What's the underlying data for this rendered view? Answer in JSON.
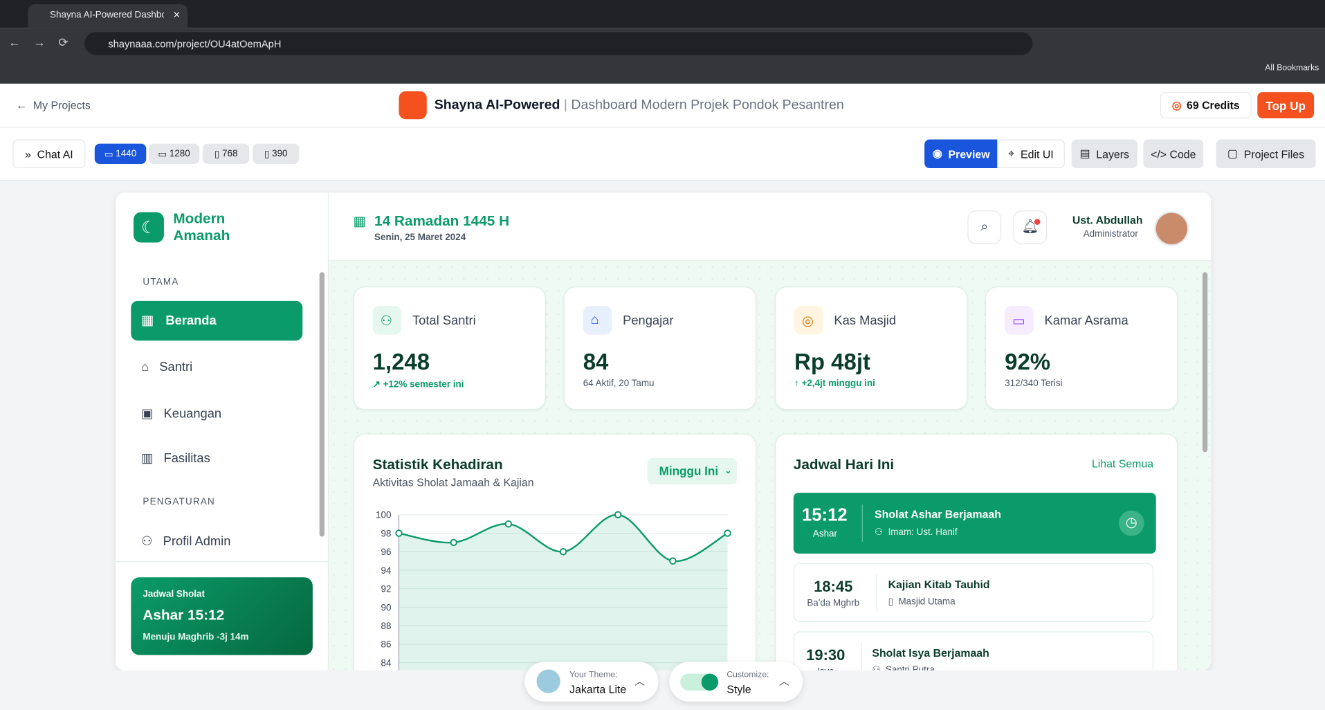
{
  "browser": {
    "tab_title": "Shayna AI-Powered Dashboard",
    "url": "shaynaaa.com/project/OU4atOemApH",
    "bookmarks": "All Bookmarks"
  },
  "app_header": {
    "back": "My Projects",
    "brand": "Shayna AI-Powered",
    "separator": "|",
    "subtitle": "Dashboard Modern Projek Pondok Pesantren",
    "credits": "69 Credits",
    "top_up": "Top Up"
  },
  "toolbar": {
    "chat": "Chat AI",
    "sizes": [
      "1440",
      "1280",
      "768",
      "390"
    ],
    "preview": "Preview",
    "edit": "Edit UI",
    "layers": "Layers",
    "code": "Code",
    "files": "Project Files"
  },
  "dashboard": {
    "logo": [
      "Modern",
      "Amanah"
    ],
    "date_title": "14 Ramadan 1445 H",
    "date_sub": "Senin, 25 Maret 2024",
    "user": {
      "name": "Ust. Abdullah",
      "role": "Administrator"
    },
    "sidebar": {
      "sections": [
        {
          "title": "UTAMA",
          "items": [
            "Beranda",
            "Santri",
            "Keuangan",
            "Fasilitas"
          ]
        },
        {
          "title": "PENGATURAN",
          "items": [
            "Profil Admin"
          ]
        }
      ],
      "prayer_card": {
        "label": "Jadwal Sholat",
        "time": "Ashar 15:12",
        "note": "Menuju Maghrib -3j 14m"
      }
    },
    "stats": [
      {
        "label": "Total Santri",
        "value": "1,248",
        "note": "+12% semester ini"
      },
      {
        "label": "Pengajar",
        "value": "84",
        "note": "64 Aktif, 20 Tamu"
      },
      {
        "label": "Kas Masjid",
        "value": "Rp 48jt",
        "note": "+2,4jt minggu ini"
      },
      {
        "label": "Kamar Asrama",
        "value": "92%",
        "note": "312/340 Terisi"
      }
    ],
    "schedule": {
      "title": "Jadwal Hari Ini",
      "link": "Lihat Semua",
      "items": [
        {
          "time": "15:12",
          "label": "Ashar",
          "title": "Sholat Ashar Berjamaah",
          "detail": "Imam: Ust. Hanif"
        },
        {
          "time": "18:45",
          "label": "Ba'da Mghrb",
          "title": "Kajian Kitab Tauhid",
          "detail": "Masjid Utama"
        },
        {
          "time": "19:30",
          "label": "Isya",
          "title": "Sholat Isya Berjamaah",
          "detail": "Santri Putra"
        }
      ]
    }
  },
  "chart_data": {
    "type": "line",
    "title": "Statistik Kehadiran",
    "subtitle": "Aktivitas Sholat Jamaah & Kajian",
    "filter": "Minggu Ini",
    "color": "#0b9b6a",
    "values": [
      98,
      97,
      99,
      96,
      100,
      95,
      98
    ],
    "ylim": [
      84,
      100
    ],
    "yticks": [
      84,
      86,
      88,
      90,
      92,
      94,
      96,
      98,
      100
    ],
    "grid": true
  },
  "theme_bar": {
    "theme_label": "Your Theme:",
    "theme": "Jakarta Lite",
    "customize_label": "Customize:",
    "customize": "Style"
  }
}
